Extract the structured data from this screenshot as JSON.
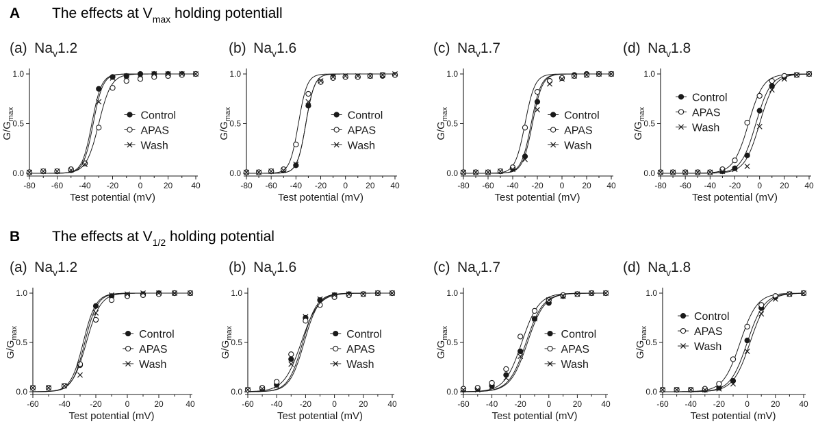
{
  "sections": [
    {
      "letter": "A",
      "title_pre": "The effects at V",
      "title_sub": "max",
      "title_post": " holding potentiall"
    },
    {
      "letter": "B",
      "title_pre": "The effects at V",
      "title_sub": "1/2",
      "title_post": " holding potential"
    }
  ],
  "colors": {
    "ink": "#1a1a1a",
    "background": "#ffffff"
  },
  "chart_data": [
    {
      "type": "line",
      "section": "A",
      "label": "(a)",
      "title_pre": "Na",
      "title_sub": "v",
      "title_post": "1.2",
      "xlabel": "Test potential (mV)",
      "ylabel_pre": "G/G",
      "ylabel_sub": "max",
      "xlim": [
        -80,
        40
      ],
      "ylim": [
        0,
        1
      ],
      "xticks": [
        -80,
        -70,
        -60,
        -50,
        -40,
        -30,
        -20,
        -10,
        0,
        10,
        20,
        30,
        40
      ],
      "xticklabels": [
        "-80",
        "",
        "-60",
        "",
        "-40",
        "",
        "-20",
        "",
        "0",
        "",
        "20",
        "",
        "40"
      ],
      "yticks": [
        0,
        0.5,
        1
      ],
      "yticklabels": [
        "0.0",
        "0.5",
        "1.0"
      ],
      "legend_position": "center-right",
      "x": [
        -80,
        -70,
        -60,
        -50,
        -40,
        -30,
        -20,
        -10,
        0,
        10,
        20,
        30,
        40
      ],
      "series": [
        {
          "name": "Control",
          "marker": "filled-circle",
          "v_half": -35,
          "slope": 3.5,
          "values": [
            0.01,
            0.02,
            0.02,
            0.03,
            0.1,
            0.85,
            0.97,
            0.98,
            1.0,
            1.0,
            1.0,
            1.0,
            1.0
          ]
        },
        {
          "name": "APAS",
          "marker": "open-circle",
          "v_half": -30,
          "slope": 4.5,
          "values": [
            0.01,
            0.02,
            0.02,
            0.04,
            0.1,
            0.46,
            0.86,
            0.93,
            0.95,
            0.97,
            0.98,
            0.99,
            1.0
          ]
        },
        {
          "name": "Wash",
          "marker": "cross",
          "v_half": -34,
          "slope": 3.5,
          "values": [
            0.01,
            0.02,
            0.02,
            0.03,
            0.09,
            0.72,
            0.96,
            0.98,
            0.99,
            1.0,
            1.0,
            1.0,
            1.0
          ]
        }
      ]
    },
    {
      "type": "line",
      "section": "A",
      "label": "(b)",
      "title_pre": "Na",
      "title_sub": "v",
      "title_post": "1.6",
      "xlabel": "Test potential (mV)",
      "ylabel_pre": "G/G",
      "ylabel_sub": "max",
      "xlim": [
        -80,
        40
      ],
      "ylim": [
        0,
        1
      ],
      "xticks": [
        -80,
        -70,
        -60,
        -50,
        -40,
        -30,
        -20,
        -10,
        0,
        10,
        20,
        30,
        40
      ],
      "xticklabels": [
        "-80",
        "",
        "-60",
        "",
        "-40",
        "",
        "-20",
        "",
        "0",
        "",
        "20",
        "",
        "40"
      ],
      "yticks": [
        0,
        0.5,
        1
      ],
      "yticklabels": [
        "0.0",
        "0.5",
        "1.0"
      ],
      "legend_position": "center-right",
      "x": [
        -80,
        -70,
        -60,
        -50,
        -40,
        -30,
        -20,
        -10,
        0,
        10,
        20,
        30,
        40
      ],
      "series": [
        {
          "name": "Control",
          "marker": "filled-circle",
          "v_half": -32,
          "slope": 3.5,
          "values": [
            0.01,
            0.01,
            0.02,
            0.03,
            0.08,
            0.68,
            0.92,
            0.97,
            0.97,
            0.97,
            0.98,
            0.98,
            0.99
          ]
        },
        {
          "name": "APAS",
          "marker": "open-circle",
          "v_half": -38,
          "slope": 3.5,
          "values": [
            0.01,
            0.01,
            0.02,
            0.04,
            0.29,
            0.8,
            0.92,
            0.96,
            0.97,
            0.97,
            0.98,
            0.99,
            0.99
          ]
        },
        {
          "name": "Wash",
          "marker": "cross",
          "v_half": -32,
          "slope": 3.5,
          "values": [
            0.01,
            0.01,
            0.02,
            0.03,
            0.09,
            0.72,
            0.93,
            0.97,
            0.98,
            0.98,
            0.98,
            0.99,
            1.0
          ]
        }
      ]
    },
    {
      "type": "line",
      "section": "A",
      "label": "(c)",
      "title_pre": "Na",
      "title_sub": "v",
      "title_post": "1.7",
      "xlabel": "Test potential (mV)",
      "ylabel_pre": "G/G",
      "ylabel_sub": "max",
      "xlim": [
        -80,
        40
      ],
      "ylim": [
        0,
        1
      ],
      "xticks": [
        -80,
        -70,
        -60,
        -50,
        -40,
        -30,
        -20,
        -10,
        0,
        10,
        20,
        30,
        40
      ],
      "xticklabels": [
        "-80",
        "",
        "-60",
        "",
        "-40",
        "",
        "-20",
        "",
        "0",
        "",
        "20",
        "",
        "40"
      ],
      "yticks": [
        0,
        0.5,
        1
      ],
      "yticklabels": [
        "0.0",
        "0.5",
        "1.0"
      ],
      "legend_position": "center-right",
      "x": [
        -80,
        -70,
        -60,
        -50,
        -40,
        -30,
        -20,
        -10,
        0,
        10,
        20,
        30,
        40
      ],
      "series": [
        {
          "name": "Control",
          "marker": "filled-circle",
          "v_half": -25,
          "slope": 4,
          "values": [
            0.01,
            0.01,
            0.01,
            0.02,
            0.05,
            0.17,
            0.72,
            0.93,
            0.96,
            0.99,
            1.0,
            1.0,
            1.0
          ]
        },
        {
          "name": "APAS",
          "marker": "open-circle",
          "v_half": -30,
          "slope": 4,
          "values": [
            0.01,
            0.01,
            0.01,
            0.02,
            0.06,
            0.46,
            0.82,
            0.93,
            0.96,
            0.98,
            0.99,
            1.0,
            1.0
          ]
        },
        {
          "name": "Wash",
          "marker": "cross",
          "v_half": -24,
          "slope": 4,
          "values": [
            0.01,
            0.01,
            0.01,
            0.02,
            0.04,
            0.14,
            0.64,
            0.9,
            0.95,
            0.98,
            0.99,
            1.0,
            1.0
          ]
        }
      ]
    },
    {
      "type": "line",
      "section": "A",
      "label": "(d)",
      "title_pre": "Na",
      "title_sub": "v",
      "title_post": "1.8",
      "xlabel": "Test potential (mV)",
      "ylabel_pre": "G/G",
      "ylabel_sub": "max",
      "xlim": [
        -80,
        40
      ],
      "ylim": [
        0,
        1
      ],
      "xticks": [
        -80,
        -70,
        -60,
        -50,
        -40,
        -30,
        -20,
        -10,
        0,
        10,
        20,
        30,
        40
      ],
      "xticklabels": [
        "-80",
        "",
        "-60",
        "",
        "-40",
        "",
        "-20",
        "",
        "0",
        "",
        "20",
        "",
        "40"
      ],
      "yticks": [
        0,
        0.5,
        1
      ],
      "yticklabels": [
        "0.0",
        "0.5",
        "1.0"
      ],
      "legend_position": "top-left",
      "x": [
        -80,
        -70,
        -60,
        -50,
        -40,
        -30,
        -20,
        -10,
        0,
        10,
        20,
        30,
        40
      ],
      "series": [
        {
          "name": "Control",
          "marker": "filled-circle",
          "v_half": -3,
          "slope": 6,
          "values": [
            0.01,
            0.01,
            0.01,
            0.01,
            0.01,
            0.02,
            0.05,
            0.18,
            0.63,
            0.88,
            0.97,
            0.99,
            1.0
          ]
        },
        {
          "name": "APAS",
          "marker": "open-circle",
          "v_half": -9,
          "slope": 6,
          "values": [
            0.01,
            0.01,
            0.01,
            0.01,
            0.01,
            0.04,
            0.13,
            0.51,
            0.78,
            0.93,
            0.98,
            0.99,
            1.0
          ]
        },
        {
          "name": "Wash",
          "marker": "cross",
          "v_half": 0,
          "slope": 6,
          "values": [
            0.01,
            0.01,
            0.01,
            0.01,
            0.01,
            0.02,
            0.04,
            0.07,
            0.47,
            0.84,
            0.95,
            0.99,
            1.0
          ]
        }
      ]
    },
    {
      "type": "line",
      "section": "B",
      "label": "(a)",
      "title_pre": "Na",
      "title_sub": "v",
      "title_post": "1.2",
      "xlabel": "Test potential (mV)",
      "ylabel_pre": "G/G",
      "ylabel_sub": "max",
      "xlim": [
        -60,
        40
      ],
      "ylim": [
        0,
        1
      ],
      "xticks": [
        -60,
        -50,
        -40,
        -30,
        -20,
        -10,
        0,
        10,
        20,
        30,
        40
      ],
      "xticklabels": [
        "-60",
        "",
        "-40",
        "",
        "-20",
        "",
        "0",
        "",
        "20",
        "",
        "40"
      ],
      "yticks": [
        0,
        0.5,
        1
      ],
      "yticklabels": [
        "0.0",
        "0.5",
        "1.0"
      ],
      "legend_position": "center-right",
      "x": [
        -60,
        -50,
        -40,
        -30,
        -20,
        -10,
        0,
        10,
        20,
        30,
        40
      ],
      "series": [
        {
          "name": "Control",
          "marker": "filled-circle",
          "v_half": -28,
          "slope": 4,
          "values": [
            0.04,
            0.04,
            0.06,
            0.27,
            0.87,
            0.97,
            0.98,
            0.99,
            1.0,
            1.0,
            1.0
          ]
        },
        {
          "name": "APAS",
          "marker": "open-circle",
          "v_half": -26,
          "slope": 4.5,
          "values": [
            0.04,
            0.04,
            0.06,
            0.28,
            0.73,
            0.93,
            0.97,
            0.98,
            0.99,
            1.0,
            1.0
          ]
        },
        {
          "name": "Wash",
          "marker": "cross",
          "v_half": -27,
          "slope": 4,
          "values": [
            0.04,
            0.04,
            0.06,
            0.17,
            0.8,
            0.98,
            0.99,
            1.0,
            1.0,
            1.0,
            1.0
          ]
        }
      ]
    },
    {
      "type": "line",
      "section": "B",
      "label": "(b)",
      "title_pre": "Na",
      "title_sub": "v",
      "title_post": "1.6",
      "xlabel": "Test potential (mV)",
      "ylabel_pre": "G/G",
      "ylabel_sub": "max",
      "xlim": [
        -60,
        40
      ],
      "ylim": [
        0,
        1
      ],
      "xticks": [
        -60,
        -50,
        -40,
        -30,
        -20,
        -10,
        0,
        10,
        20,
        30,
        40
      ],
      "xticklabels": [
        "-60",
        "",
        "-40",
        "",
        "-20",
        "",
        "0",
        "",
        "20",
        "",
        "40"
      ],
      "yticks": [
        0,
        0.5,
        1
      ],
      "yticklabels": [
        "0.0",
        "0.5",
        "1.0"
      ],
      "legend_position": "center-right",
      "x": [
        -60,
        -50,
        -40,
        -30,
        -20,
        -10,
        0,
        10,
        20,
        30,
        40
      ],
      "series": [
        {
          "name": "Control",
          "marker": "filled-circle",
          "v_half": -22,
          "slope": 5,
          "values": [
            0.02,
            0.03,
            0.07,
            0.33,
            0.75,
            0.93,
            0.98,
            0.99,
            0.99,
            1.0,
            1.0
          ]
        },
        {
          "name": "APAS",
          "marker": "open-circle",
          "v_half": -23,
          "slope": 6,
          "values": [
            0.02,
            0.04,
            0.1,
            0.38,
            0.72,
            0.88,
            0.96,
            0.98,
            0.99,
            1.0,
            1.0
          ]
        },
        {
          "name": "Wash",
          "marker": "cross",
          "v_half": -21,
          "slope": 5,
          "values": [
            0.02,
            0.03,
            0.06,
            0.28,
            0.76,
            0.94,
            0.98,
            0.99,
            0.99,
            1.0,
            1.0
          ]
        }
      ]
    },
    {
      "type": "line",
      "section": "B",
      "label": "(c)",
      "title_pre": "Na",
      "title_sub": "v",
      "title_post": "1.7",
      "xlabel": "Test potential (mV)",
      "ylabel_pre": "G/G",
      "ylabel_sub": "max",
      "xlim": [
        -60,
        40
      ],
      "ylim": [
        0,
        1
      ],
      "xticks": [
        -60,
        -50,
        -40,
        -30,
        -20,
        -10,
        0,
        10,
        20,
        30,
        40
      ],
      "xticklabels": [
        "-60",
        "",
        "-40",
        "",
        "-20",
        "",
        "0",
        "",
        "20",
        "",
        "40"
      ],
      "yticks": [
        0,
        0.5,
        1
      ],
      "yticklabels": [
        "0.0",
        "0.5",
        "1.0"
      ],
      "legend_position": "center-right",
      "x": [
        -60,
        -50,
        -40,
        -30,
        -20,
        -10,
        0,
        10,
        20,
        30,
        40
      ],
      "series": [
        {
          "name": "Control",
          "marker": "filled-circle",
          "v_half": -16,
          "slope": 6,
          "values": [
            0.02,
            0.03,
            0.06,
            0.17,
            0.41,
            0.74,
            0.9,
            0.97,
            0.99,
            1.0,
            1.0
          ]
        },
        {
          "name": "APAS",
          "marker": "open-circle",
          "v_half": -19,
          "slope": 6,
          "values": [
            0.03,
            0.04,
            0.09,
            0.23,
            0.56,
            0.82,
            0.93,
            0.98,
            0.99,
            1.0,
            1.0
          ]
        },
        {
          "name": "Wash",
          "marker": "cross",
          "v_half": -15,
          "slope": 6,
          "values": [
            0.02,
            0.02,
            0.05,
            0.14,
            0.36,
            0.74,
            0.93,
            0.97,
            0.99,
            1.0,
            1.0
          ]
        }
      ]
    },
    {
      "type": "line",
      "section": "B",
      "label": "(d)",
      "title_pre": "Na",
      "title_sub": "v",
      "title_post": "1.8",
      "xlabel": "Test potential (mV)",
      "ylabel_pre": "G/G",
      "ylabel_sub": "max",
      "xlim": [
        -60,
        40
      ],
      "ylim": [
        0,
        1
      ],
      "xticks": [
        -60,
        -50,
        -40,
        -30,
        -20,
        -10,
        0,
        10,
        20,
        30,
        40
      ],
      "xticklabels": [
        "-60",
        "",
        "-40",
        "",
        "-20",
        "",
        "0",
        "",
        "20",
        "",
        "40"
      ],
      "yticks": [
        0,
        0.5,
        1
      ],
      "yticklabels": [
        "0.0",
        "0.5",
        "1.0"
      ],
      "legend_position": "top-left",
      "x": [
        -60,
        -50,
        -40,
        -30,
        -20,
        -10,
        0,
        10,
        20,
        30,
        40
      ],
      "series": [
        {
          "name": "Control",
          "marker": "filled-circle",
          "v_half": 0,
          "slope": 6,
          "values": [
            0.02,
            0.02,
            0.02,
            0.02,
            0.04,
            0.11,
            0.52,
            0.85,
            0.96,
            0.99,
            1.0
          ]
        },
        {
          "name": "APAS",
          "marker": "open-circle",
          "v_half": -5,
          "slope": 6,
          "values": [
            0.02,
            0.02,
            0.02,
            0.03,
            0.08,
            0.33,
            0.66,
            0.88,
            0.97,
            0.99,
            1.0
          ]
        },
        {
          "name": "Wash",
          "marker": "cross",
          "v_half": 2,
          "slope": 6,
          "values": [
            0.02,
            0.02,
            0.02,
            0.02,
            0.03,
            0.08,
            0.41,
            0.79,
            0.94,
            0.99,
            1.0
          ]
        }
      ]
    }
  ]
}
